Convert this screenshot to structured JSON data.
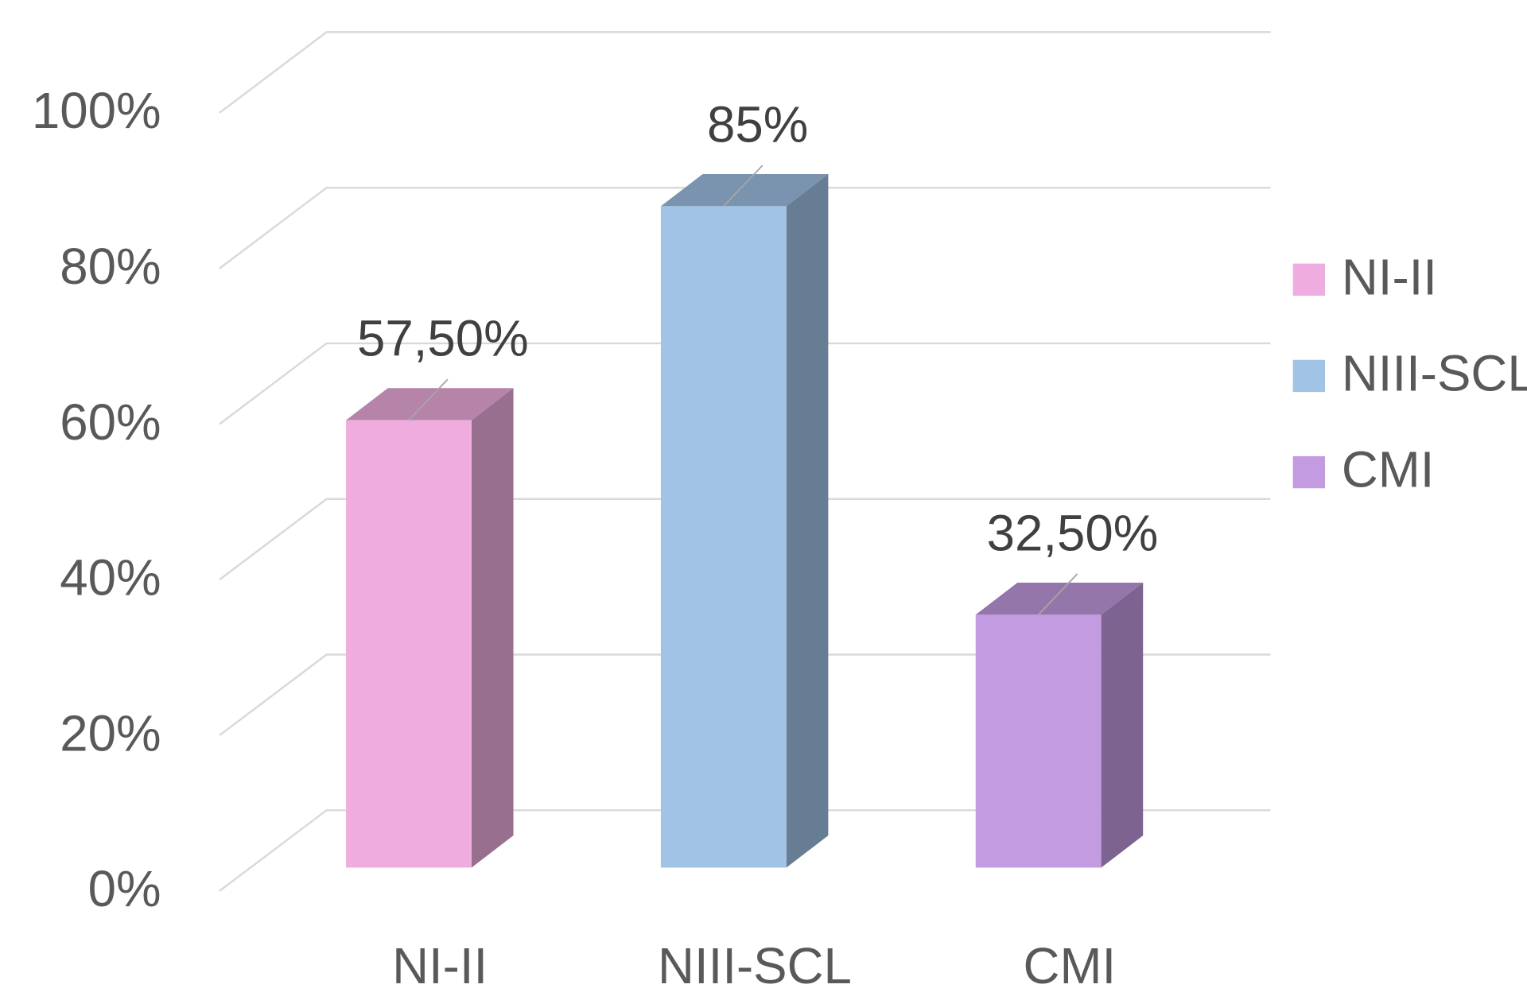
{
  "chart_data": {
    "type": "bar3d",
    "categories": [
      "NI-II",
      "NIII-SCL",
      "CMI"
    ],
    "values": [
      57.5,
      85,
      32.5
    ],
    "value_labels": [
      "57,50%",
      "85%",
      "32,50%"
    ],
    "colors": [
      "#efaddf",
      "#a0c3e6",
      "#c39be0"
    ],
    "ylim": [
      0,
      100
    ],
    "yticks": [
      {
        "value": 0,
        "label": "0%"
      },
      {
        "value": 20,
        "label": "20%"
      },
      {
        "value": 40,
        "label": "40%"
      },
      {
        "value": 60,
        "label": "60%"
      },
      {
        "value": 80,
        "label": "80%"
      },
      {
        "value": 100,
        "label": "100%"
      }
    ],
    "grid": true,
    "legend": "right"
  }
}
